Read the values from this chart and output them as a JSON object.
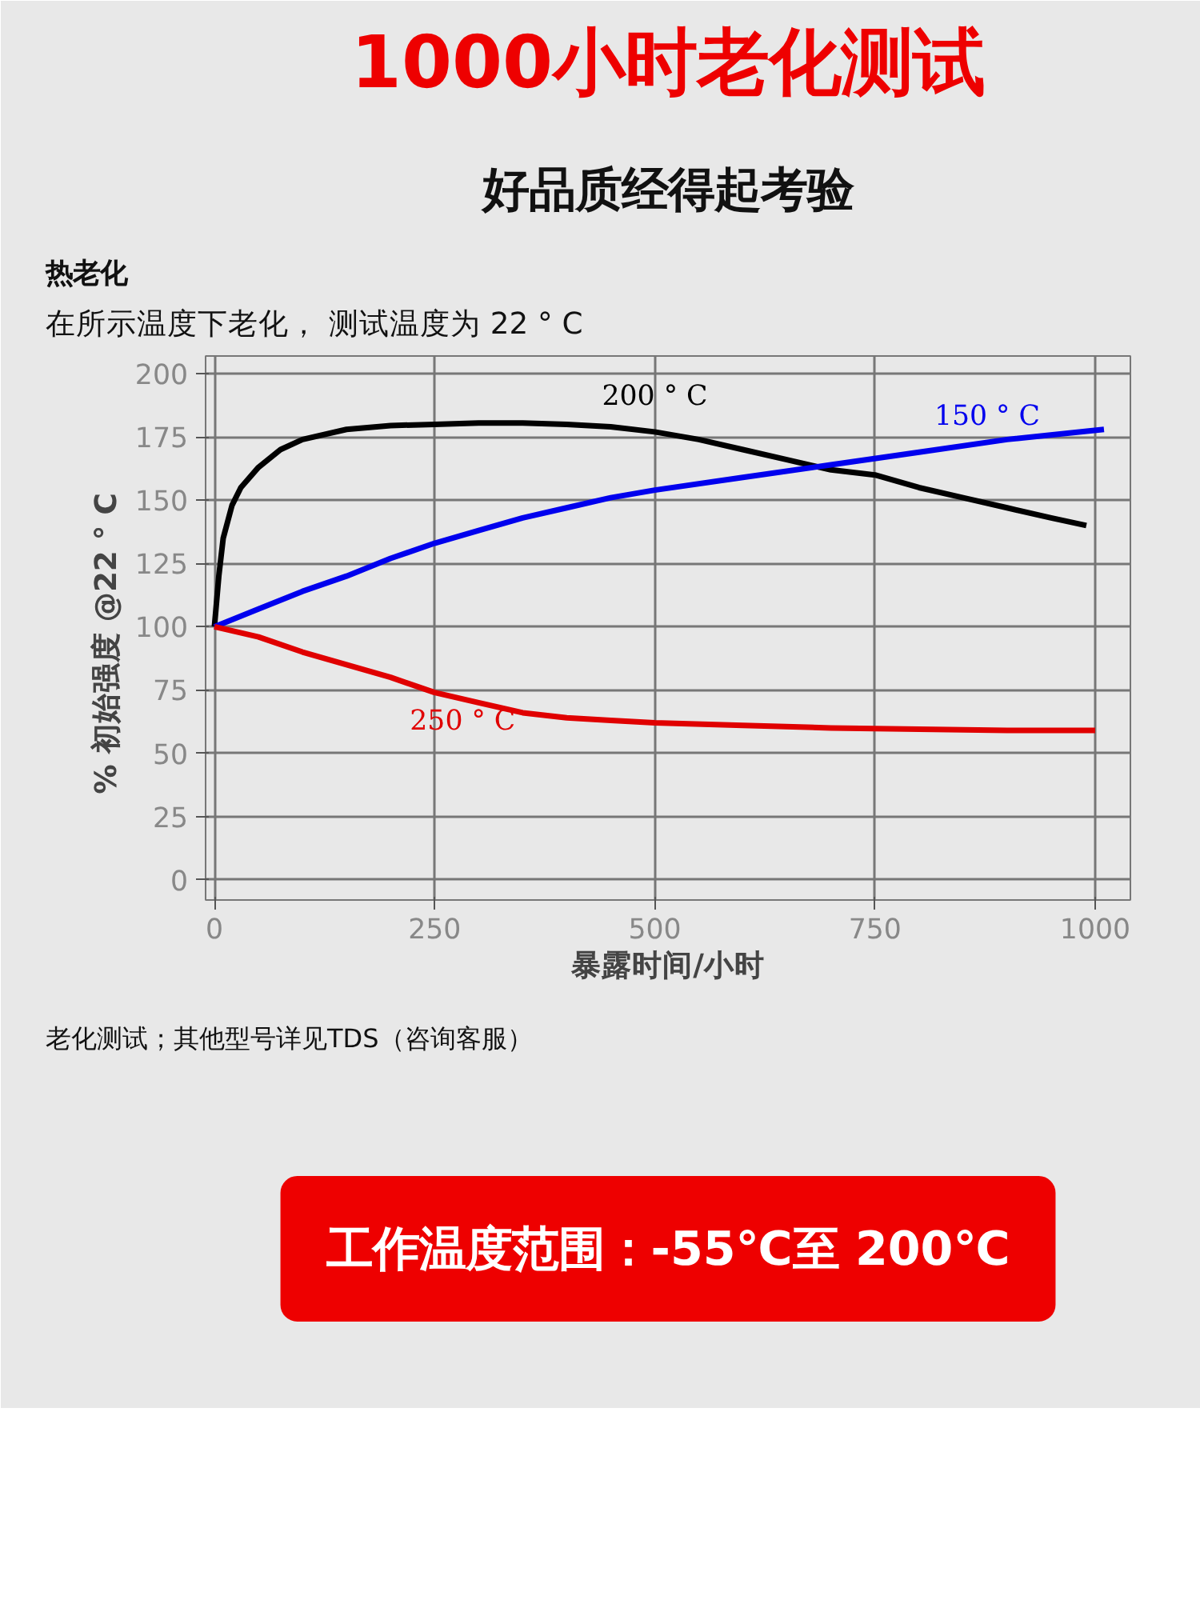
{
  "chart_data": {
    "type": "line",
    "title": "1000小时老化测试",
    "subtitle": "好品质经得起考验",
    "xlabel": "暴露时间/小时",
    "ylabel": "%  初始强度   @22 ° C",
    "annotations": [
      "热老化",
      "在所示温度下老化，    测试温度为 22 ° C",
      "老化测试；其他型号详见TDS（咨询客服）",
      "工作温度范围：-55℃至 200℃"
    ],
    "series": [
      {
        "name": "200 ° C",
        "color": "#000000",
        "x": [
          0,
          5,
          10,
          20,
          30,
          50,
          75,
          100,
          150,
          200,
          250,
          300,
          350,
          400,
          450,
          500,
          550,
          600,
          650,
          700,
          750,
          800,
          850,
          900,
          950,
          990
        ],
        "values": [
          100,
          120,
          135,
          148,
          155,
          163,
          170,
          174,
          178,
          179.5,
          180,
          180.5,
          180.5,
          180,
          179,
          177,
          174,
          170,
          166,
          162,
          160,
          155,
          151,
          147,
          143,
          140
        ]
      },
      {
        "name": "150 ° C",
        "color": "#0000ee",
        "x": [
          0,
          50,
          100,
          150,
          200,
          250,
          300,
          350,
          400,
          450,
          500,
          600,
          700,
          800,
          900,
          1010
        ],
        "values": [
          100,
          107,
          114,
          120,
          127,
          133,
          138,
          143,
          147,
          151,
          154,
          159,
          164,
          169,
          174,
          178
        ]
      },
      {
        "name": "250 ° C",
        "color": "#e00000",
        "x": [
          0,
          50,
          100,
          150,
          200,
          250,
          300,
          350,
          400,
          450,
          500,
          600,
          700,
          800,
          900,
          1000
        ],
        "values": [
          100,
          96,
          90,
          85,
          80,
          74,
          70,
          66,
          64,
          63,
          62,
          61,
          60,
          59.5,
          59,
          59
        ]
      }
    ],
    "xlim": [
      -10,
      1040
    ],
    "ylim": [
      -8,
      207
    ],
    "xticks": [
      0,
      250,
      500,
      750,
      1000
    ],
    "yticks": [
      0,
      25,
      50,
      75,
      100,
      125,
      150,
      175,
      200
    ],
    "grid": true,
    "marker": "none",
    "line_style": "solid"
  }
}
